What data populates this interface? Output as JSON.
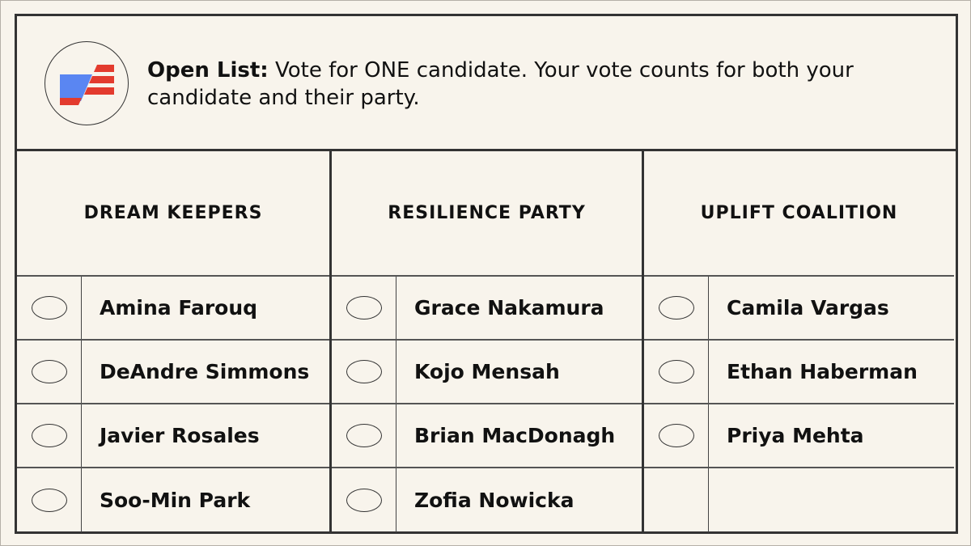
{
  "header": {
    "logo": "flag-logo",
    "instruction_bold": "Open List:",
    "instruction_text": " Vote for ONE candidate. Your vote counts for both your candidate and their party."
  },
  "colors": {
    "blue": "#5a86f2",
    "red": "#e33b2e",
    "border": "#333333",
    "background": "#f8f4ec"
  },
  "parties": [
    {
      "name": "DREAM KEEPERS",
      "candidates": [
        "Amina Farouq",
        "DeAndre Simmons",
        "Javier Rosales",
        "Soo-Min Park"
      ]
    },
    {
      "name": "RESILIENCE PARTY",
      "candidates": [
        "Grace Nakamura",
        "Kojo Mensah",
        "Brian MacDonagh",
        "Zofia Nowicka"
      ]
    },
    {
      "name": "UPLIFT COALITION",
      "candidates": [
        "Camila Vargas",
        "Ethan Haberman",
        "Priya Mehta"
      ]
    }
  ]
}
